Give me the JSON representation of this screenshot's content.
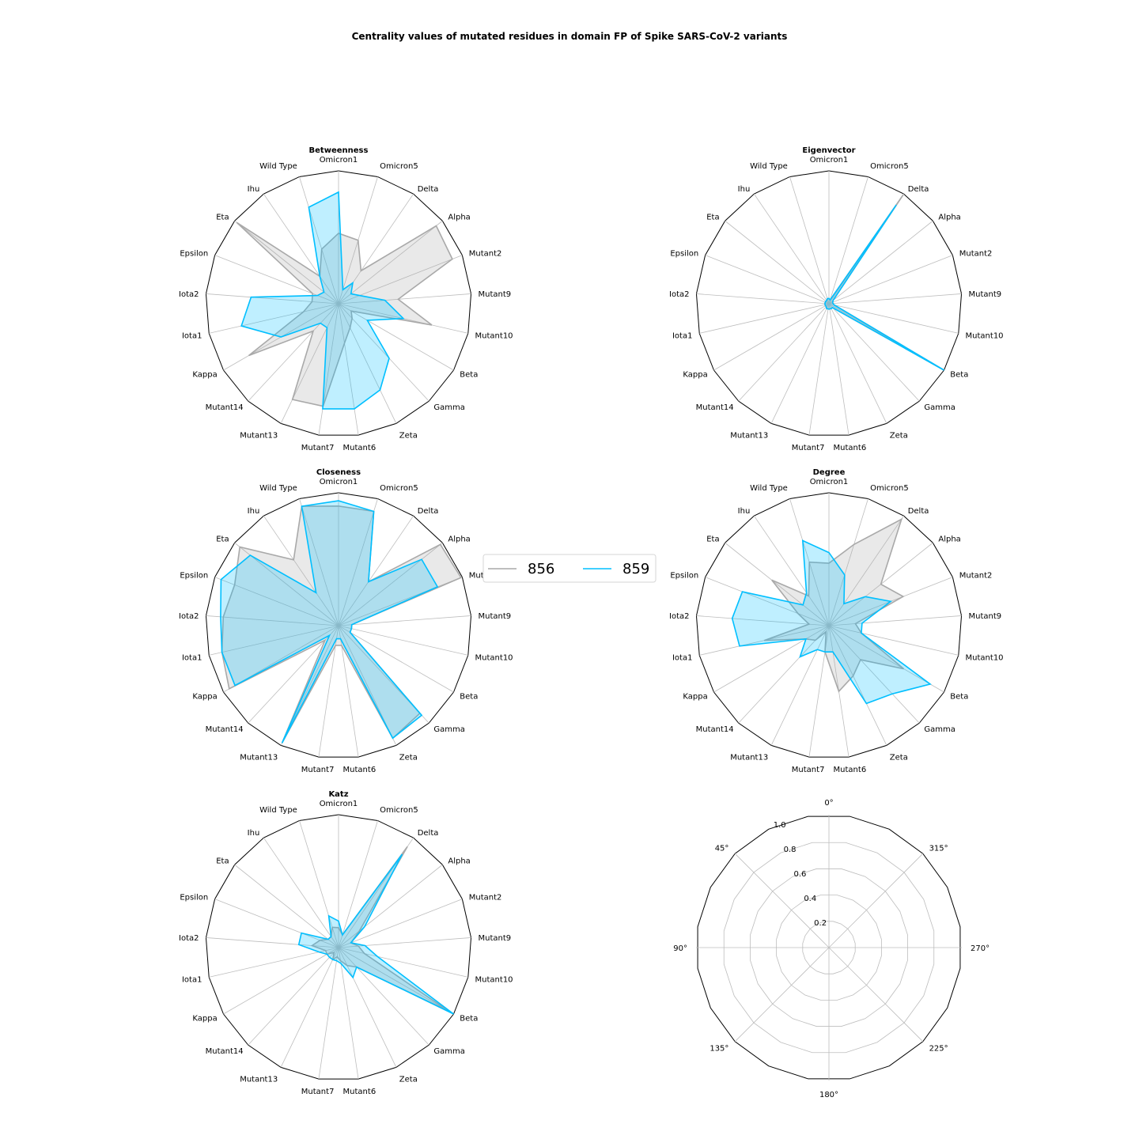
{
  "title": "Centrality values of mutated residues in domain FP of Spike SARS-CoV-2 variants",
  "chart_data": [
    {
      "type": "radar",
      "title": "Betweenness",
      "categories": [
        "Omicron1",
        "Wild Type",
        "Ihu",
        "Eta",
        "Epsilon",
        "Iota2",
        "Iota1",
        "Kappa",
        "Mutant14",
        "Mutant13",
        "Mutant7",
        "Mutant6",
        "Zeta",
        "Gamma",
        "Beta",
        "Mutant10",
        "Mutant9",
        "Mutant2",
        "Alpha",
        "Delta",
        "Omicron5"
      ],
      "ylim": [
        0,
        1
      ],
      "series": [
        {
          "name": "856",
          "color": "#a9a9a9",
          "values": [
            0.53,
            0.43,
            0.25,
            0.98,
            0.21,
            0.2,
            0.27,
            0.78,
            0.28,
            0.8,
            0.78,
            0.3,
            0.2,
            0.15,
            0.11,
            0.72,
            0.45,
            0.92,
            0.94,
            0.3,
            0.5
          ]
        },
        {
          "name": "859",
          "color": "#00bfff",
          "values": [
            0.84,
            0.76,
            0.25,
            0.14,
            0.17,
            0.66,
            0.75,
            0.5,
            0.2,
            0.2,
            0.8,
            0.8,
            0.72,
            0.56,
            0.25,
            0.5,
            0.35,
            0.17,
            0.12,
            0.19,
            0.11
          ]
        }
      ]
    },
    {
      "type": "radar",
      "title": "Eigenvector",
      "categories": [
        "Omicron1",
        "Wild Type",
        "Ihu",
        "Eta",
        "Epsilon",
        "Iota2",
        "Iota1",
        "Kappa",
        "Mutant14",
        "Mutant13",
        "Mutant7",
        "Mutant6",
        "Zeta",
        "Gamma",
        "Beta",
        "Mutant10",
        "Mutant9",
        "Mutant2",
        "Alpha",
        "Delta",
        "Omicron5"
      ],
      "ylim": [
        0,
        1
      ],
      "series": [
        {
          "name": "856",
          "color": "#a9a9a9",
          "values": [
            0.04,
            0.04,
            0.03,
            0.03,
            0.03,
            0.03,
            0.03,
            0.03,
            0.03,
            0.04,
            0.04,
            0.04,
            0.04,
            0.04,
            1.0,
            0.04,
            0.03,
            0.03,
            0.04,
            1.0,
            0.03
          ]
        },
        {
          "name": "859",
          "color": "#00bfff",
          "values": [
            0.04,
            0.04,
            0.03,
            0.03,
            0.03,
            0.03,
            0.03,
            0.03,
            0.03,
            0.04,
            0.04,
            0.04,
            0.04,
            0.04,
            1.0,
            0.04,
            0.03,
            0.03,
            0.04,
            0.9,
            0.03
          ]
        }
      ]
    },
    {
      "type": "radar",
      "title": "Closeness",
      "categories": [
        "Omicron1",
        "Wild Type",
        "Ihu",
        "Eta",
        "Epsilon",
        "Iota2",
        "Iota1",
        "Kappa",
        "Mutant14",
        "Mutant13",
        "Mutant7",
        "Mutant6",
        "Zeta",
        "Gamma",
        "Beta",
        "Mutant10",
        "Mutant9",
        "Mutant2",
        "Alpha",
        "Delta",
        "Omicron5"
      ],
      "ylim": [
        0,
        1
      ],
      "series": [
        {
          "name": "856",
          "color": "#a9a9a9",
          "values": [
            0.9,
            0.94,
            0.6,
            0.95,
            0.84,
            0.87,
            0.9,
            0.95,
            0.15,
            0.98,
            0.15,
            0.15,
            0.94,
            0.9,
            0.1,
            0.1,
            0.1,
            0.99,
            0.98,
            0.4,
            0.9
          ]
        },
        {
          "name": "859",
          "color": "#00bfff",
          "values": [
            0.94,
            0.94,
            0.3,
            0.85,
            0.95,
            0.89,
            0.9,
            0.9,
            0.1,
            0.98,
            0.1,
            0.1,
            0.94,
            0.92,
            0.1,
            0.1,
            0.1,
            0.8,
            0.8,
            0.4,
            0.9
          ]
        }
      ]
    },
    {
      "type": "radar",
      "title": "Degree",
      "categories": [
        "Omicron1",
        "Wild Type",
        "Ihu",
        "Eta",
        "Epsilon",
        "Iota2",
        "Iota1",
        "Kappa",
        "Mutant14",
        "Mutant13",
        "Mutant7",
        "Mutant6",
        "Zeta",
        "Gamma",
        "Beta",
        "Mutant10",
        "Mutant9",
        "Mutant2",
        "Alpha",
        "Delta",
        "Omicron5"
      ],
      "ylim": [
        0,
        1
      ],
      "series": [
        {
          "name": "856",
          "color": "#a9a9a9",
          "values": [
            0.47,
            0.5,
            0.27,
            0.55,
            0.25,
            0.15,
            0.5,
            0.2,
            0.15,
            0.05,
            0.2,
            0.5,
            0.42,
            0.35,
            0.65,
            0.25,
            0.2,
            0.6,
            0.5,
            0.97,
            0.64
          ]
        },
        {
          "name": "859",
          "color": "#00bfff",
          "values": [
            0.55,
            0.67,
            0.3,
            0.25,
            0.7,
            0.73,
            0.69,
            0.2,
            0.32,
            0.2,
            0.2,
            0.2,
            0.65,
            0.7,
            0.88,
            0.25,
            0.25,
            0.5,
            0.35,
            0.2,
            0.4
          ]
        }
      ]
    },
    {
      "type": "radar",
      "title": "Katz",
      "categories": [
        "Omicron1",
        "Wild Type",
        "Ihu",
        "Eta",
        "Epsilon",
        "Iota2",
        "Iota1",
        "Kappa",
        "Mutant14",
        "Mutant13",
        "Mutant7",
        "Mutant6",
        "Zeta",
        "Gamma",
        "Beta",
        "Mutant10",
        "Mutant9",
        "Mutant2",
        "Alpha",
        "Delta",
        "Omicron5"
      ],
      "ylim": [
        0,
        1
      ],
      "series": [
        {
          "name": "856",
          "color": "#a9a9a9",
          "values": [
            0.15,
            0.16,
            0.1,
            0.1,
            0.15,
            0.2,
            0.1,
            0.1,
            0.05,
            0.1,
            0.07,
            0.1,
            0.15,
            0.2,
            0.96,
            0.2,
            0.15,
            0.1,
            0.2,
            0.92,
            0.1
          ]
        },
        {
          "name": "859",
          "color": "#00bfff",
          "values": [
            0.2,
            0.25,
            0.1,
            0.1,
            0.3,
            0.3,
            0.15,
            0.1,
            0.1,
            0.1,
            0.1,
            0.12,
            0.25,
            0.2,
            1.0,
            0.3,
            0.2,
            0.1,
            0.25,
            0.85,
            0.1
          ]
        }
      ]
    },
    {
      "type": "polar-empty",
      "angle_tick_labels": [
        "0°",
        "45°",
        "90°",
        "135°",
        "180°",
        "225°",
        "270°",
        "315°"
      ],
      "radial_tick_labels": [
        "0.2",
        "0.4",
        "0.6",
        "0.8",
        "1.0"
      ],
      "radial_ticks": [
        0.2,
        0.4,
        0.6,
        0.8,
        1.0
      ]
    }
  ],
  "legend": [
    {
      "label": "856",
      "color": "#a9a9a9"
    },
    {
      "label": "859",
      "color": "#00bfff"
    }
  ]
}
